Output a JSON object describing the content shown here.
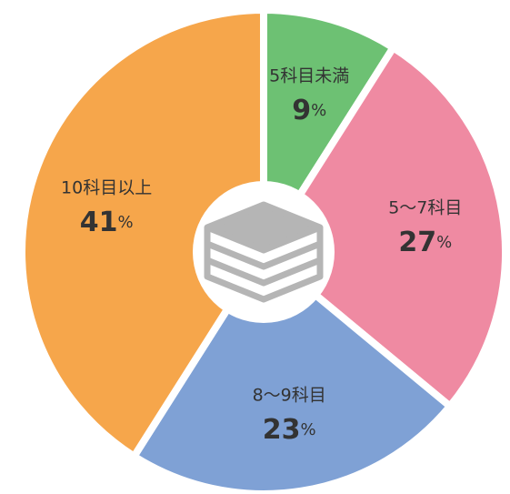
{
  "chart_data": {
    "type": "donut",
    "categories": [
      "5科目未満",
      "5〜7科目",
      "8〜9科目",
      "10科目以上"
    ],
    "values": [
      9,
      27,
      23,
      41
    ],
    "value_labels": [
      "9%",
      "27%",
      "23%",
      "41%"
    ],
    "colors": [
      "#6dc173",
      "#ef8aa2",
      "#7fa1d5",
      "#f6a64b"
    ]
  }
}
